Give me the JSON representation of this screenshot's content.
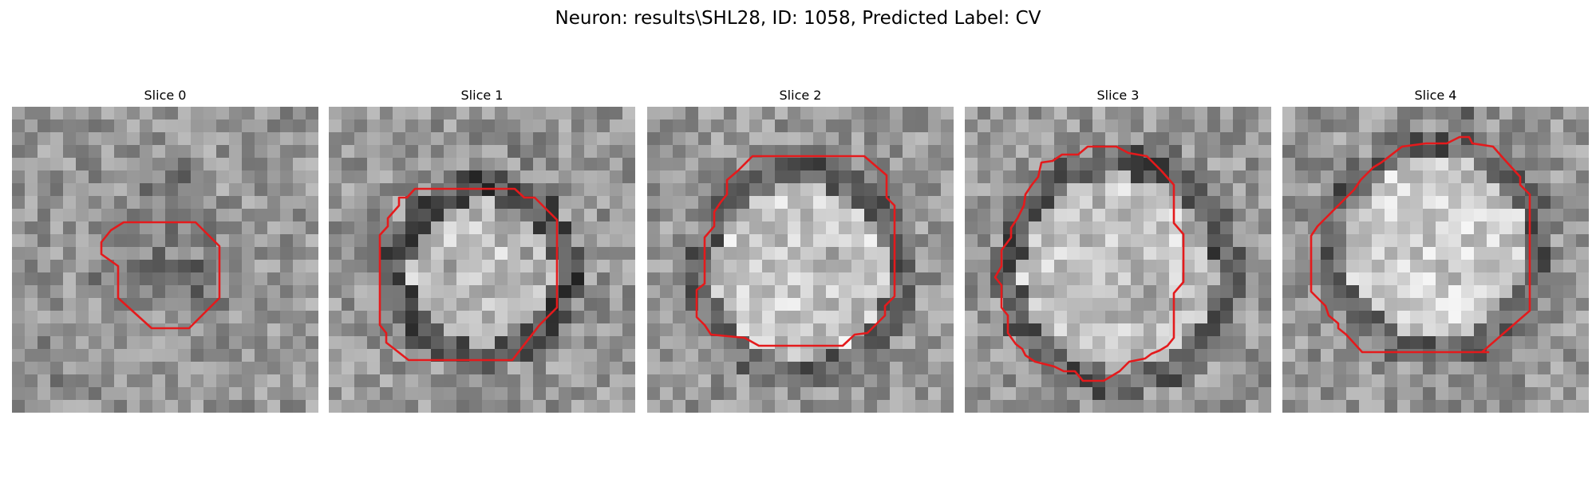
{
  "figure": {
    "title": "Neuron: results\\SHL28, ID: 1058, Predicted Label: CV"
  },
  "colors": {
    "contour": "#e41a1c",
    "background": "#ffffff",
    "text": "#000000"
  },
  "panels": [
    {
      "title": "Slice 0"
    },
    {
      "title": "Slice 1"
    },
    {
      "title": "Slice 2"
    },
    {
      "title": "Slice 3"
    },
    {
      "title": "Slice 4"
    }
  ]
}
